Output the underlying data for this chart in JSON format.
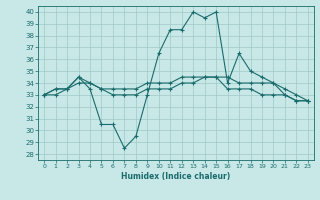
{
  "xlabel": "Humidex (Indice chaleur)",
  "ylabel": "",
  "bg_color": "#c8e8e8",
  "line_color": "#1a6b6b",
  "grid_color": "#a0c8c8",
  "xlim": [
    -0.5,
    23.5
  ],
  "ylim": [
    27.5,
    40.5
  ],
  "yticks": [
    28,
    29,
    30,
    31,
    32,
    33,
    34,
    35,
    36,
    37,
    38,
    39,
    40
  ],
  "xticks": [
    0,
    1,
    2,
    3,
    4,
    5,
    6,
    7,
    8,
    9,
    10,
    11,
    12,
    13,
    14,
    15,
    16,
    17,
    18,
    19,
    20,
    21,
    22,
    23
  ],
  "series1": [
    33.0,
    33.5,
    33.5,
    34.5,
    33.5,
    30.5,
    30.5,
    28.5,
    29.5,
    33.0,
    36.5,
    38.5,
    38.5,
    40.0,
    39.5,
    40.0,
    34.0,
    36.5,
    35.0,
    34.5,
    34.0,
    33.0,
    32.5,
    32.5
  ],
  "series2": [
    33.0,
    33.5,
    33.5,
    34.5,
    34.0,
    33.5,
    33.5,
    33.5,
    33.5,
    34.0,
    34.0,
    34.0,
    34.5,
    34.5,
    34.5,
    34.5,
    34.5,
    34.0,
    34.0,
    34.0,
    34.0,
    33.5,
    33.0,
    32.5
  ],
  "series3": [
    33.0,
    33.0,
    33.5,
    34.0,
    34.0,
    33.5,
    33.0,
    33.0,
    33.0,
    33.5,
    33.5,
    33.5,
    34.0,
    34.0,
    34.5,
    34.5,
    33.5,
    33.5,
    33.5,
    33.0,
    33.0,
    33.0,
    32.5,
    32.5
  ]
}
